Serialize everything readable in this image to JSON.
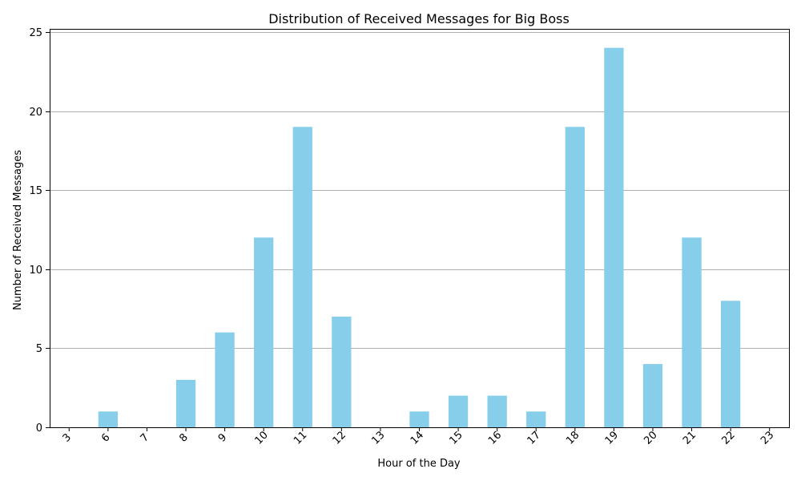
{
  "chart_data": {
    "type": "bar",
    "title": "Distribution of Received Messages for Big Boss",
    "xlabel": "Hour of the Day",
    "ylabel": "Number of Received Messages",
    "categories": [
      "3",
      "6",
      "7",
      "8",
      "9",
      "10",
      "11",
      "12",
      "13",
      "14",
      "15",
      "16",
      "17",
      "18",
      "19",
      "20",
      "21",
      "22",
      "23"
    ],
    "values": [
      0,
      1,
      0,
      3,
      6,
      12,
      19,
      7,
      0,
      1,
      2,
      2,
      1,
      19,
      24,
      4,
      12,
      8,
      0
    ],
    "ylim": [
      0,
      25.2
    ],
    "yticks": [
      0,
      5,
      10,
      15,
      20,
      25
    ],
    "grid": "y-axis",
    "bar_color": "#87ceeb",
    "x_tick_rotation": "45 degrees"
  }
}
